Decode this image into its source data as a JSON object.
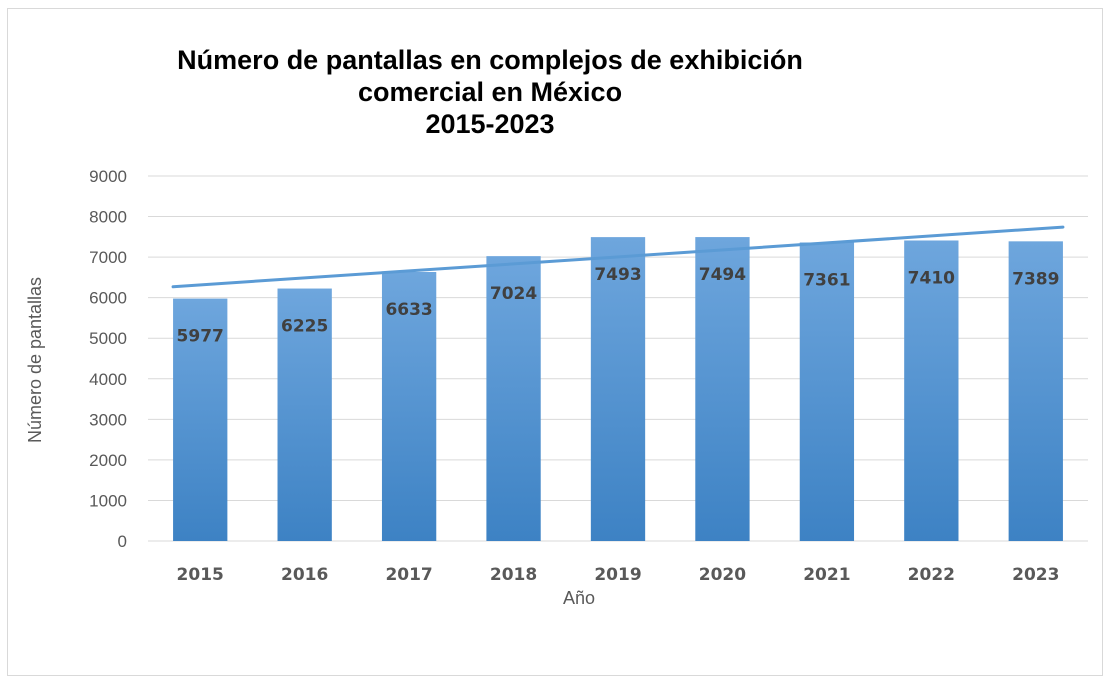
{
  "chart_data": {
    "type": "bar",
    "title_lines": [
      "Número de pantallas en complejos de exhibición",
      "comercial en México",
      "2015-2023"
    ],
    "xlabel": "Año",
    "ylabel": "Número de pantallas",
    "categories": [
      "2015",
      "2016",
      "2017",
      "2018",
      "2019",
      "2020",
      "2021",
      "2022",
      "2023"
    ],
    "values": [
      5977,
      6225,
      6633,
      7024,
      7493,
      7494,
      7361,
      7410,
      7389
    ],
    "ylim": [
      0,
      9000
    ],
    "yticks": [
      "0",
      "1000",
      "2000",
      "3000",
      "4000",
      "5000",
      "6000",
      "7000",
      "8000",
      "9000"
    ],
    "trendline": {
      "type": "linear",
      "start": 6270,
      "end": 7740
    },
    "grid": true,
    "legend": "none",
    "colors": {
      "bar_top": "#6ea6dd",
      "bar_bottom": "#3d82c4",
      "trend": "#5b9bd5",
      "grid": "#d9d9d9"
    }
  }
}
